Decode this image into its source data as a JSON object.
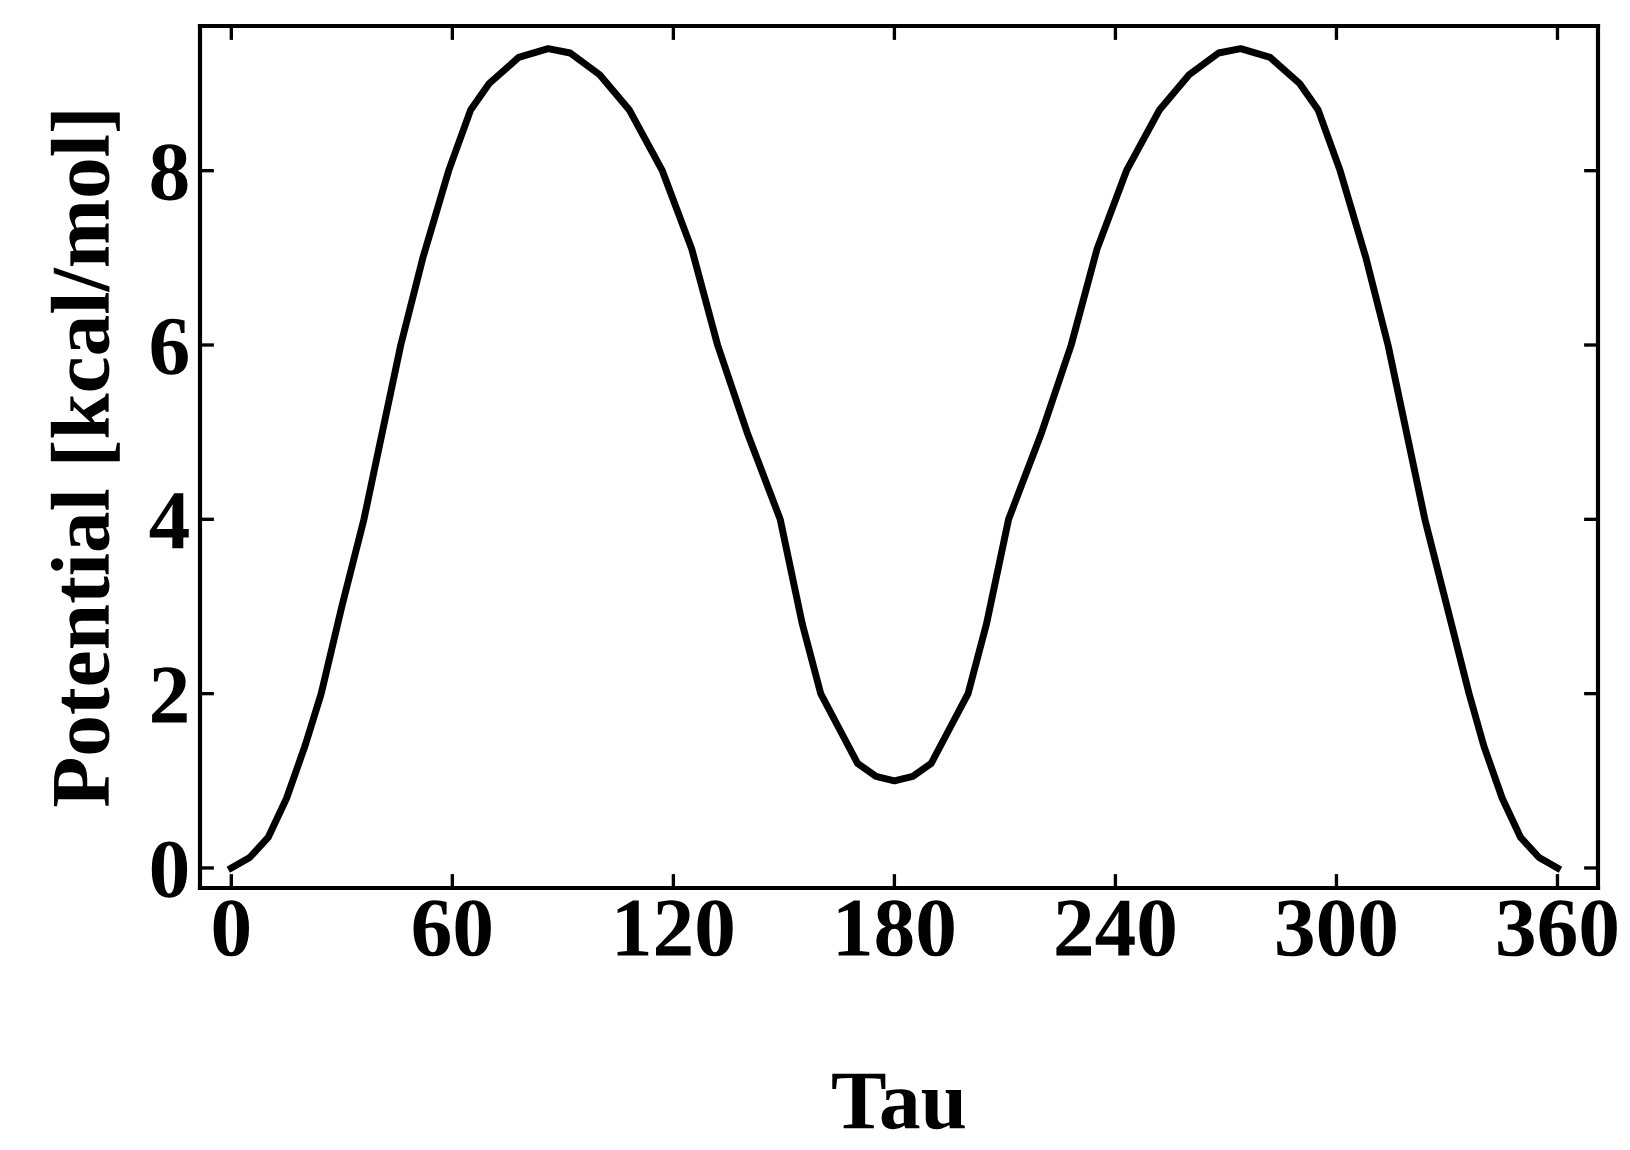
{
  "chart_data": {
    "type": "line",
    "xlabel": "Tau",
    "ylabel": "Potential [kcal/mol]",
    "x": [
      0,
      5,
      10,
      15,
      20,
      24.4,
      30,
      36,
      40,
      46,
      52,
      59,
      65,
      70,
      78,
      86,
      92,
      100,
      108,
      117,
      125,
      132,
      140,
      149,
      155,
      160,
      165,
      170,
      175,
      180,
      185,
      190,
      195,
      200,
      205,
      211,
      220,
      228,
      235,
      243,
      252,
      260,
      268,
      274,
      282,
      290,
      295,
      301,
      308,
      314,
      320,
      324,
      330,
      336,
      340,
      345,
      350,
      355,
      360
    ],
    "series": [
      {
        "color": "#000000",
        "values": [
          0,
          0.12,
          0.35,
          0.8,
          1.4,
          2,
          3,
          4,
          4.8,
          6,
          7,
          8,
          8.7,
          9,
          9.3,
          9.4,
          9.35,
          9.1,
          8.7,
          8,
          7.1,
          6,
          5,
          4,
          2.8,
          2,
          1.6,
          1.2,
          1.05,
          1,
          1.05,
          1.2,
          1.6,
          2,
          2.8,
          4,
          5,
          6,
          7.1,
          8,
          8.7,
          9.1,
          9.35,
          9.4,
          9.3,
          9,
          8.7,
          8,
          7,
          6,
          4.8,
          4,
          3,
          2,
          1.4,
          0.8,
          0.35,
          0.12,
          0
        ]
      }
    ],
    "xlim": [
      -8.5,
      371
    ],
    "ylim": [
      -0.23,
      9.66
    ],
    "xticks": [
      0,
      60,
      120,
      180,
      240,
      300,
      360
    ],
    "yticks": [
      0,
      2,
      4,
      6,
      8
    ],
    "grid": false,
    "legend": false,
    "marker": "none",
    "line_style": "solid"
  }
}
